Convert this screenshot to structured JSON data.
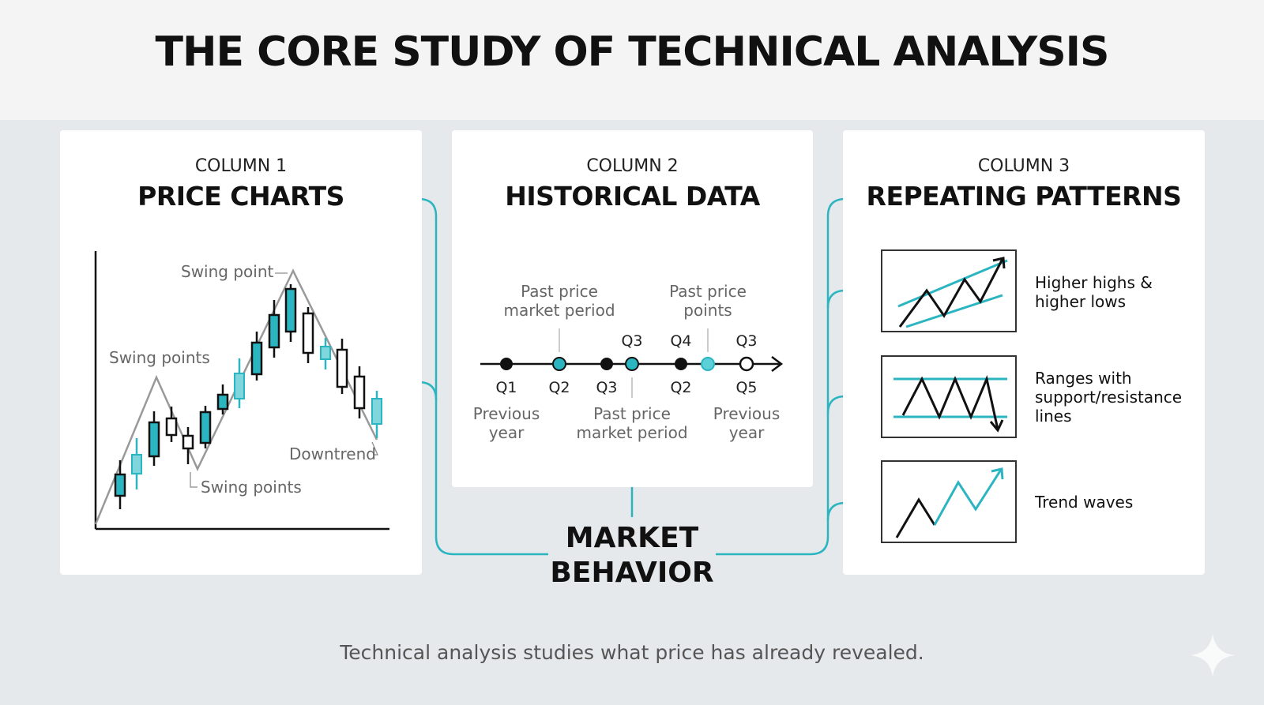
{
  "title": "THE CORE STUDY OF TECHNICAL ANALYSIS",
  "columns": [
    {
      "label": "COLUMN 1",
      "title": "PRICE CHARTS"
    },
    {
      "label": "COLUMN 2",
      "title": "HISTORICAL DATA"
    },
    {
      "label": "COLUMN 3",
      "title": "REPEATING PATTERNS"
    }
  ],
  "price_chart": {
    "annotations": {
      "swing_point": "Swing point",
      "swing_points_upper": "Swing points",
      "swing_points_lower": "Swing points",
      "downtrend": "Downtrend"
    }
  },
  "timeline": {
    "above_left": [
      "Past price",
      "market period"
    ],
    "above_right": [
      "Past price",
      "points"
    ],
    "upper_labels": [
      "Q3",
      "Q4",
      "Q3"
    ],
    "lower_labels": [
      "Q1",
      "Q2",
      "Q3",
      "Q2",
      "Q5"
    ],
    "below_left": [
      "Previous",
      "year"
    ],
    "below_middle": [
      "Past price",
      "market period"
    ],
    "below_right": [
      "Previous",
      "year"
    ]
  },
  "patterns": [
    {
      "icon": "rising-channel-icon",
      "lines": [
        "Higher highs &",
        "higher lows"
      ]
    },
    {
      "icon": "range-support-resistance-icon",
      "lines": [
        "Ranges with",
        "support/resistance",
        "lines"
      ]
    },
    {
      "icon": "trend-waves-icon",
      "lines": [
        "Trend waves"
      ]
    }
  ],
  "center": {
    "lines": [
      "MARKET",
      "BEHAVIOR"
    ]
  },
  "footer": "Technical analysis studies what price has already revealed.",
  "colors": {
    "accent": "#2bb5c1",
    "dark": "#111111",
    "background": "#e6e9eb"
  }
}
